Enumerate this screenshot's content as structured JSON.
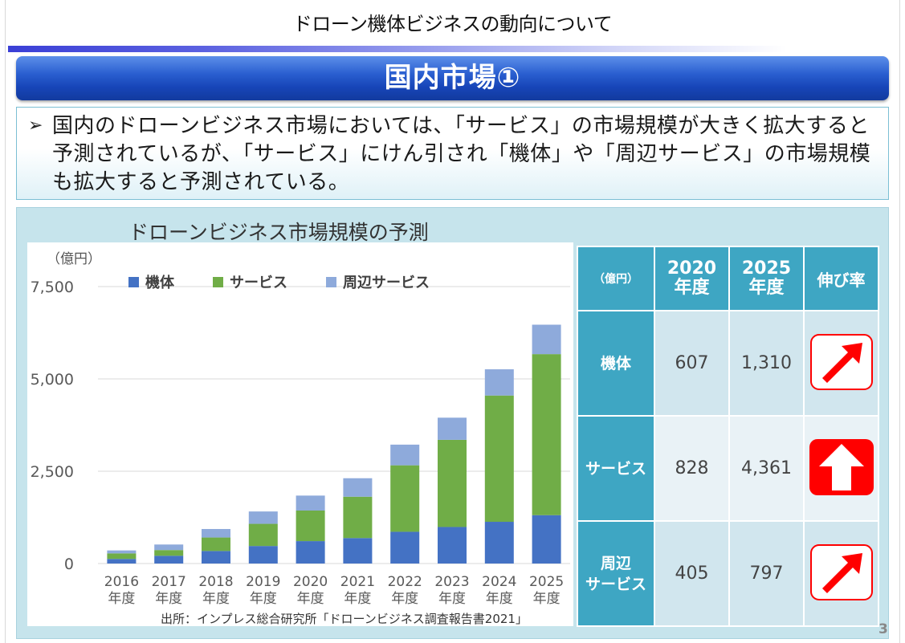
{
  "header": {
    "title": "ドローン機体ビジネスの動向について"
  },
  "banner": {
    "title": "国内市場①"
  },
  "summary": {
    "bullet": "➢",
    "text": "国内のドローンビジネス市場においては、「サービス」の市場規模が大きく拡大すると予測されているが、「サービス」にけん引され「機体」や「周辺サービス」の市場規模も拡大すると予測されている。"
  },
  "chart_data": {
    "type": "bar",
    "stacked": true,
    "title": "ドローンビジネス市場規模の予測",
    "unit_label": "（億円）",
    "categories": [
      "2016\n年度",
      "2017\n年度",
      "2018\n年度",
      "2019\n年度",
      "2020\n年度",
      "2021\n年度",
      "2022\n年度",
      "2023\n年度",
      "2024\n年度",
      "2025\n年度"
    ],
    "series": [
      {
        "name": "機体",
        "color": "#4472c4",
        "values": [
          125,
          210,
          340,
          475,
          607,
          690,
          860,
          990,
          1130,
          1310
        ]
      },
      {
        "name": "サービス",
        "color": "#70ad47",
        "values": [
          150,
          155,
          365,
          600,
          828,
          1120,
          1800,
          2360,
          3420,
          4361
        ]
      },
      {
        "name": "周辺サービス",
        "color": "#8eaadb",
        "values": [
          80,
          150,
          230,
          335,
          405,
          500,
          560,
          600,
          710,
          797
        ]
      }
    ],
    "y_ticks": [
      "0",
      "2,500",
      "5,000",
      "7,500"
    ],
    "y_tick_values": [
      0,
      2500,
      5000,
      7500
    ],
    "ylim": [
      0,
      7500
    ],
    "legend_position": "top",
    "grid": true
  },
  "source": "出所：インプレス総合研究所「ドローンビジネス調査報告書2021」",
  "table": {
    "unit": "（億円）",
    "col_2020": "2020\n年度",
    "col_2025": "2025\n年度",
    "col_rate": "伸び率",
    "rows": [
      {
        "label": "機体",
        "v2020": "607",
        "v2025": "1,310",
        "rate_icon": "diagonal-arrow-icon"
      },
      {
        "label": "サービス",
        "v2020": "828",
        "v2025": "4,361",
        "rate_icon": "up-arrow-icon"
      },
      {
        "label": "周辺\nサービス",
        "v2020": "405",
        "v2025": "797",
        "rate_icon": "diagonal-arrow-icon"
      }
    ]
  },
  "colors": {
    "accent_red": "#ff0000",
    "table_header": "#3ea6c3",
    "banner_blue": "#1745b8"
  },
  "page_number": "3"
}
